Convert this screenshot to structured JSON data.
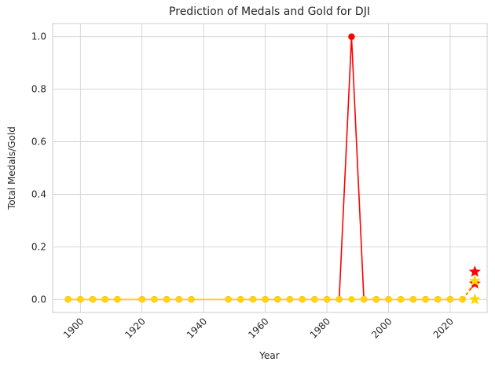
{
  "chart_data": {
    "type": "line",
    "title": "Prediction of Medals and Gold for DJI",
    "xlabel": "Year",
    "ylabel": "Total Medals/Gold",
    "xlim": [
      1891,
      2032
    ],
    "ylim": [
      -0.05,
      1.05
    ],
    "x_ticks": [
      1900,
      1920,
      1940,
      1960,
      1980,
      2000,
      2020
    ],
    "y_ticks": [
      0.0,
      0.2,
      0.4,
      0.6,
      0.8,
      1.0
    ],
    "x_tick_labels": [
      "1900",
      "1920",
      "1940",
      "1960",
      "1980",
      "2000",
      "2020"
    ],
    "y_tick_labels": [
      "0.0",
      "0.2",
      "0.4",
      "0.6",
      "0.8",
      "1.0"
    ],
    "grid": true,
    "years": [
      1896,
      1900,
      1904,
      1908,
      1912,
      1920,
      1924,
      1928,
      1932,
      1936,
      1948,
      1952,
      1956,
      1960,
      1964,
      1968,
      1972,
      1976,
      1980,
      1984,
      1988,
      1992,
      1996,
      2000,
      2004,
      2008,
      2012,
      2016,
      2020,
      2024
    ],
    "series": [
      {
        "key": "total",
        "color": "#ff0000",
        "marker": "circle",
        "values": [
          0,
          0,
          0,
          0,
          0,
          0,
          0,
          0,
          0,
          0,
          0,
          0,
          0,
          0,
          0,
          0,
          0,
          0,
          0,
          0,
          1,
          0,
          0,
          0,
          0,
          0,
          0,
          0,
          0,
          0
        ]
      },
      {
        "key": "gold",
        "color": "#ffd700",
        "marker": "circle",
        "values": [
          0,
          0,
          0,
          0,
          0,
          0,
          0,
          0,
          0,
          0,
          0,
          0,
          0,
          0,
          0,
          0,
          0,
          0,
          0,
          0,
          0,
          0,
          0,
          0,
          0,
          0,
          0,
          0,
          0,
          0
        ]
      }
    ],
    "predictions": [
      {
        "key": "total_upper",
        "x": 2028,
        "y": 0.105,
        "color": "#ff0000",
        "marker": "star"
      },
      {
        "key": "total_pred",
        "x": 2028,
        "y": 0.06,
        "color": "#ff0000",
        "marker": "star"
      },
      {
        "key": "gold_upper",
        "x": 2028,
        "y": 0.07,
        "color": "#ffd700",
        "marker": "star"
      },
      {
        "key": "gold_pred",
        "x": 2028,
        "y": 0.0,
        "color": "#ffd700",
        "marker": "star"
      }
    ],
    "prediction_links": [
      {
        "from": [
          2024,
          0
        ],
        "to": [
          2028,
          0.06
        ],
        "color": "#ff0000"
      },
      {
        "from": [
          2024,
          0
        ],
        "to": [
          2028,
          0.07
        ],
        "color": "#ffd700"
      }
    ]
  }
}
